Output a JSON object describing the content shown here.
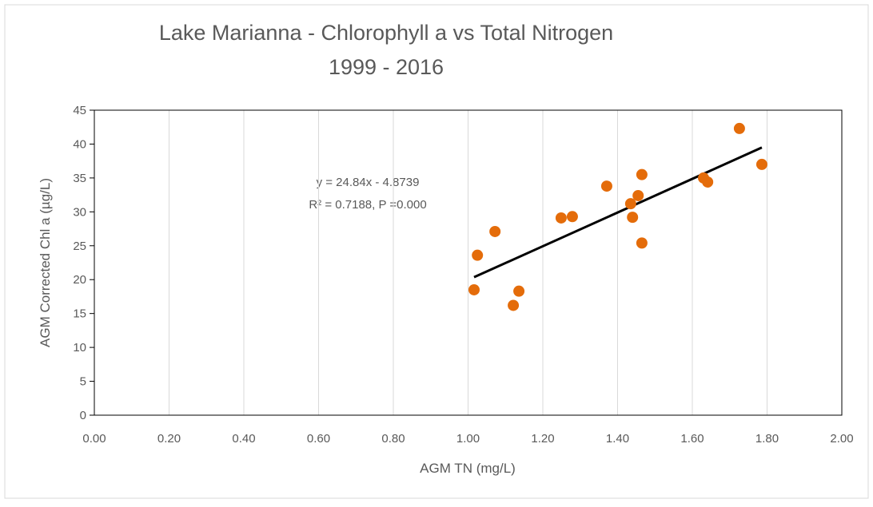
{
  "chart_data": {
    "type": "scatter",
    "title": "Lake Marianna - Chlorophyll a vs Total Nitrogen",
    "subtitle": "1999 - 2016",
    "x_label": "AGM TN (mg/L)",
    "y_label": "AGM Corrected Chl a (µg/L)",
    "color": "#e46c0a",
    "x": [
      1.016,
      1.025,
      1.072,
      1.121,
      1.136,
      1.249,
      1.279,
      1.371,
      1.435,
      1.44,
      1.455,
      1.465,
      1.465,
      1.63,
      1.641,
      1.726,
      1.786
    ],
    "values": [
      18.5,
      23.6,
      27.1,
      16.2,
      18.3,
      29.1,
      29.3,
      33.8,
      31.2,
      29.2,
      32.4,
      35.5,
      25.4,
      35.0,
      34.4,
      42.3,
      37.0
    ],
    "trendline": {
      "x": [
        1.016,
        1.786
      ],
      "y": [
        20.36,
        39.49
      ],
      "color": "#000000"
    },
    "annotations": [
      "y = 24.84x - 4.8739",
      "R² = 0.7188, P =0.000"
    ],
    "xlim": [
      0,
      2
    ],
    "ylim": [
      0,
      45
    ],
    "xticks": [
      {
        "value": 0,
        "label": "0.00"
      },
      {
        "value": 0.2,
        "label": "0.20"
      },
      {
        "value": 0.4,
        "label": "0.40"
      },
      {
        "value": 0.6,
        "label": "0.60"
      },
      {
        "value": 0.8,
        "label": "0.80"
      },
      {
        "value": 1,
        "label": "1.00"
      },
      {
        "value": 1.2,
        "label": "1.20"
      },
      {
        "value": 1.4,
        "label": "1.40"
      },
      {
        "value": 1.6,
        "label": "1.60"
      },
      {
        "value": 1.8,
        "label": "1.80"
      },
      {
        "value": 2,
        "label": "2.00"
      }
    ],
    "yticks": [
      0,
      5,
      10,
      15,
      20,
      25,
      30,
      35,
      40,
      45
    ],
    "grid": "x"
  }
}
